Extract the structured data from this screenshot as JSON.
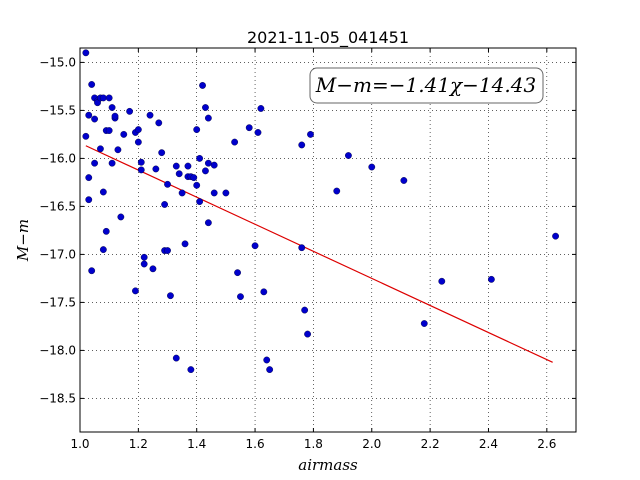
{
  "chart_data": {
    "type": "scatter",
    "title": "2021-11-05_041451",
    "xlabel": "airmass",
    "ylabel": "M−m",
    "annotation": "M−m=−1.41χ−14.43",
    "xlim": [
      1.0,
      2.7
    ],
    "ylim": [
      -18.85,
      -14.85
    ],
    "y_inverted": true,
    "grid": true,
    "xticks": [
      "1.0",
      "1.2",
      "1.4",
      "1.6",
      "1.8",
      "2.0",
      "2.2",
      "2.4",
      "2.6"
    ],
    "yticks": [
      "−15.0",
      "−15.5",
      "−16.0",
      "−16.5",
      "−17.0",
      "−17.5",
      "−18.0",
      "−18.5"
    ],
    "xtick_values": [
      1.0,
      1.2,
      1.4,
      1.6,
      1.8,
      2.0,
      2.2,
      2.4,
      2.6
    ],
    "ytick_values": [
      -15.0,
      -15.5,
      -16.0,
      -16.5,
      -17.0,
      -17.5,
      -18.0,
      -18.5
    ],
    "points_color": "#0000cc",
    "fit_color": "#dd0000",
    "fit": {
      "slope": -1.41,
      "intercept": -14.43,
      "x_range": [
        1.02,
        2.62
      ]
    },
    "points": [
      [
        1.02,
        -14.9
      ],
      [
        1.03,
        -15.55
      ],
      [
        1.02,
        -15.77
      ],
      [
        1.03,
        -16.2
      ],
      [
        1.03,
        -16.43
      ],
      [
        1.04,
        -15.23
      ],
      [
        1.04,
        -17.17
      ],
      [
        1.05,
        -15.37
      ],
      [
        1.05,
        -15.59
      ],
      [
        1.05,
        -16.05
      ],
      [
        1.06,
        -15.4
      ],
      [
        1.06,
        -15.42
      ],
      [
        1.07,
        -15.37
      ],
      [
        1.07,
        -15.9
      ],
      [
        1.08,
        -15.37
      ],
      [
        1.08,
        -16.35
      ],
      [
        1.08,
        -16.95
      ],
      [
        1.09,
        -15.71
      ],
      [
        1.09,
        -16.76
      ],
      [
        1.1,
        -15.37
      ],
      [
        1.1,
        -15.71
      ],
      [
        1.11,
        -15.47
      ],
      [
        1.11,
        -16.05
      ],
      [
        1.12,
        -15.58
      ],
      [
        1.12,
        -15.56
      ],
      [
        1.13,
        -15.91
      ],
      [
        1.14,
        -16.61
      ],
      [
        1.15,
        -15.75
      ],
      [
        1.17,
        -15.51
      ],
      [
        1.19,
        -15.73
      ],
      [
        1.19,
        -17.38
      ],
      [
        1.2,
        -15.7
      ],
      [
        1.2,
        -15.83
      ],
      [
        1.21,
        -16.04
      ],
      [
        1.21,
        -16.12
      ],
      [
        1.22,
        -17.03
      ],
      [
        1.22,
        -17.1
      ],
      [
        1.24,
        -15.55
      ],
      [
        1.25,
        -17.15
      ],
      [
        1.26,
        -16.11
      ],
      [
        1.27,
        -15.63
      ],
      [
        1.28,
        -15.94
      ],
      [
        1.29,
        -16.48
      ],
      [
        1.29,
        -16.96
      ],
      [
        1.3,
        -16.27
      ],
      [
        1.3,
        -16.96
      ],
      [
        1.31,
        -17.43
      ],
      [
        1.33,
        -16.08
      ],
      [
        1.33,
        -18.08
      ],
      [
        1.34,
        -16.16
      ],
      [
        1.35,
        -16.36
      ],
      [
        1.36,
        -16.89
      ],
      [
        1.37,
        -16.19
      ],
      [
        1.37,
        -16.08
      ],
      [
        1.38,
        -16.19
      ],
      [
        1.38,
        -18.2
      ],
      [
        1.39,
        -16.2
      ],
      [
        1.4,
        -15.7
      ],
      [
        1.4,
        -16.28
      ],
      [
        1.41,
        -16.0
      ],
      [
        1.41,
        -16.45
      ],
      [
        1.42,
        -15.24
      ],
      [
        1.43,
        -15.47
      ],
      [
        1.43,
        -16.13
      ],
      [
        1.44,
        -15.58
      ],
      [
        1.44,
        -16.67
      ],
      [
        1.44,
        -16.05
      ],
      [
        1.46,
        -16.07
      ],
      [
        1.46,
        -16.36
      ],
      [
        1.5,
        -16.36
      ],
      [
        1.53,
        -15.83
      ],
      [
        1.54,
        -17.19
      ],
      [
        1.55,
        -17.44
      ],
      [
        1.58,
        -15.68
      ],
      [
        1.6,
        -16.91
      ],
      [
        1.61,
        -15.73
      ],
      [
        1.62,
        -15.48
      ],
      [
        1.63,
        -17.39
      ],
      [
        1.64,
        -18.1
      ],
      [
        1.65,
        -18.2
      ],
      [
        1.76,
        -15.86
      ],
      [
        1.76,
        -16.93
      ],
      [
        1.77,
        -17.58
      ],
      [
        1.78,
        -17.83
      ],
      [
        1.79,
        -15.75
      ],
      [
        1.88,
        -16.34
      ],
      [
        1.92,
        -15.97
      ],
      [
        2.0,
        -16.09
      ],
      [
        2.11,
        -16.23
      ],
      [
        2.18,
        -17.72
      ],
      [
        2.24,
        -17.28
      ],
      [
        2.41,
        -17.26
      ],
      [
        2.63,
        -16.81
      ]
    ]
  }
}
